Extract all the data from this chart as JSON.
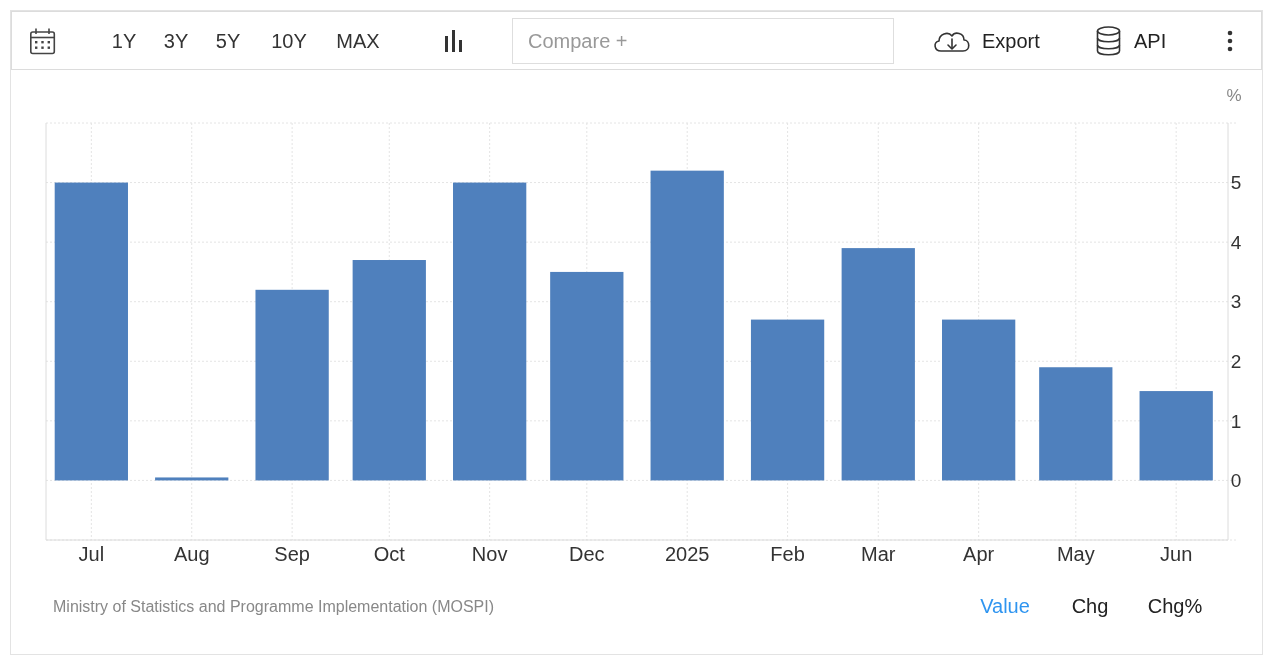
{
  "chart_data": {
    "type": "bar",
    "ylabel": "%",
    "x": [
      "2024-07",
      "2024-08",
      "2024-09",
      "2024-10",
      "2024-11",
      "2024-12",
      "2025-01",
      "2025-02",
      "2025-03",
      "2025-04",
      "2025-05",
      "2025-06"
    ],
    "values": [
      5.0,
      0.05,
      3.2,
      3.7,
      5.0,
      3.5,
      5.2,
      2.7,
      3.9,
      2.7,
      1.9,
      1.5
    ],
    "color": "#4f80bd",
    "xlim": [
      "2024-06-17",
      "2025-06-17"
    ],
    "xticks": [
      {
        "value": "2024-07",
        "label": "Jul"
      },
      {
        "value": "2024-08",
        "label": "Aug"
      },
      {
        "value": "2024-09",
        "label": "Sep"
      },
      {
        "value": "2024-10",
        "label": "Oct"
      },
      {
        "value": "2024-11",
        "label": "Nov"
      },
      {
        "value": "2024-12",
        "label": "Dec"
      },
      {
        "value": "2025-01",
        "label": "2025"
      },
      {
        "value": "2025-02",
        "label": "Feb"
      },
      {
        "value": "2025-03",
        "label": "Mar"
      },
      {
        "value": "2025-04",
        "label": "Apr"
      },
      {
        "value": "2025-05",
        "label": "May"
      },
      {
        "value": "2025-06",
        "label": "Jun"
      }
    ],
    "ylim": [
      -1,
      6
    ],
    "yticks": [
      {
        "value": -1,
        "label": null
      },
      0,
      1,
      2,
      3,
      4,
      5,
      {
        "value": 6,
        "label": null
      }
    ],
    "grid": true,
    "annotations": [
      "1Y",
      "3Y",
      "5Y",
      "10Y",
      "MAX",
      "Compare +",
      "Export",
      "API",
      "Ministry of Statistics and Programme Implementation (MOSPI)",
      "Value",
      "Chg",
      "Chg%"
    ]
  }
}
